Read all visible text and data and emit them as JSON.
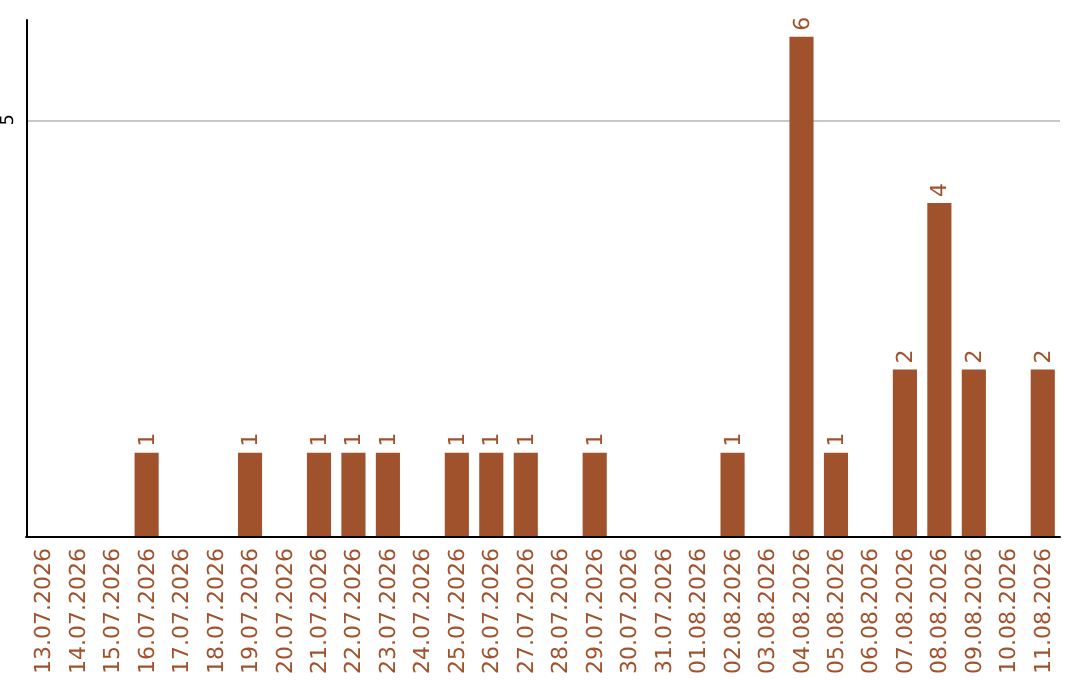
{
  "chart_data": {
    "type": "bar",
    "categories": [
      "13.07.2026",
      "14.07.2026",
      "15.07.2026",
      "16.07.2026",
      "17.07.2026",
      "18.07.2026",
      "19.07.2026",
      "20.07.2026",
      "21.07.2026",
      "22.07.2026",
      "23.07.2026",
      "24.07.2026",
      "25.07.2026",
      "26.07.2026",
      "27.07.2026",
      "28.07.2026",
      "29.07.2026",
      "30.07.2026",
      "31.07.2026",
      "01.08.2026",
      "02.08.2026",
      "03.08.2026",
      "04.08.2026",
      "05.08.2026",
      "06.08.2026",
      "07.08.2026",
      "08.08.2026",
      "09.08.2026",
      "10.08.2026",
      "11.08.2026"
    ],
    "values": [
      0,
      0,
      0,
      1,
      0,
      0,
      1,
      0,
      1,
      1,
      1,
      0,
      1,
      1,
      1,
      0,
      1,
      0,
      0,
      0,
      1,
      0,
      6,
      1,
      0,
      2,
      4,
      2,
      0,
      2
    ],
    "value_labels": [
      null,
      null,
      null,
      "1",
      null,
      null,
      "1",
      null,
      "1",
      "1",
      "1",
      null,
      "1",
      "1",
      "1",
      null,
      "1",
      null,
      null,
      null,
      "1",
      null,
      "6",
      "1",
      null,
      "2",
      "4",
      "2",
      null,
      "2"
    ],
    "color": "#a0522d",
    "ylim": [
      0,
      6.2
    ],
    "yticks": [
      5
    ],
    "grid": "y"
  }
}
